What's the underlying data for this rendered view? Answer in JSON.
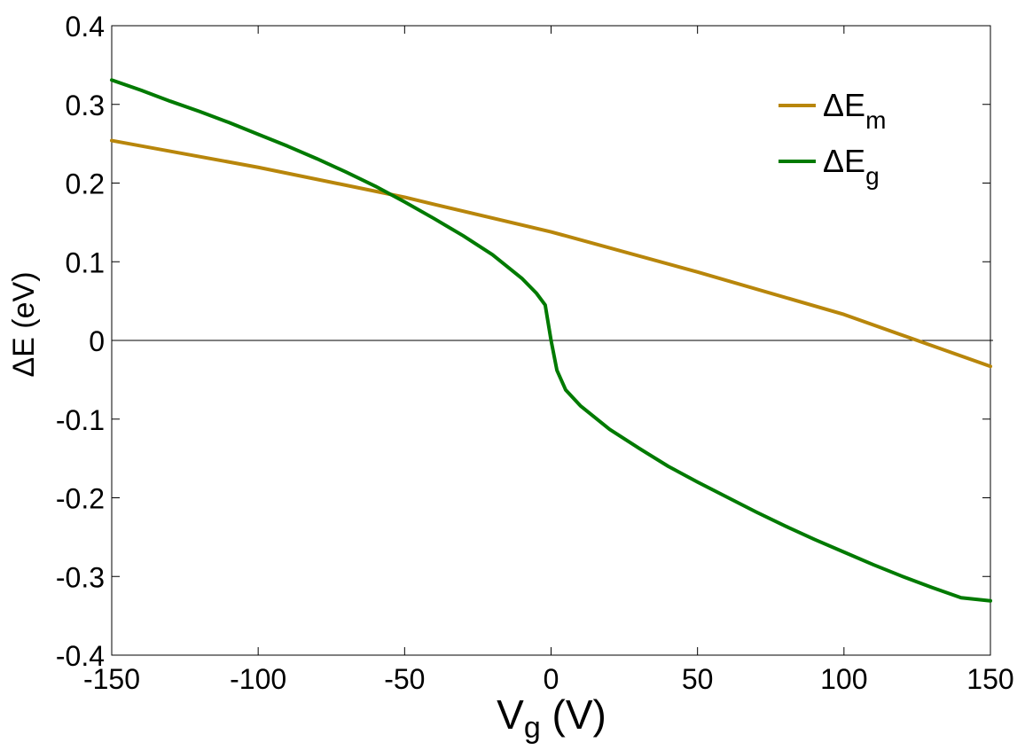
{
  "chart_data": {
    "type": "line",
    "title": "",
    "xlabel": {
      "main": "V",
      "sub": "g",
      "rest": " (V)"
    },
    "ylabel": "ΔE (eV)",
    "xlim": [
      -150,
      150
    ],
    "ylim": [
      -0.4,
      0.4
    ],
    "xticks": [
      -150,
      -100,
      -50,
      0,
      50,
      100,
      150
    ],
    "xtick_labels": [
      "-150",
      "-100",
      "-50",
      "0",
      "50",
      "100",
      "150"
    ],
    "yticks": [
      -0.4,
      -0.3,
      -0.2,
      -0.1,
      0,
      0.1,
      0.2,
      0.3,
      0.4
    ],
    "ytick_labels": [
      "-0.4",
      "-0.3",
      "-0.2",
      "-0.1",
      "0",
      "0.1",
      "0.2",
      "0.3",
      "0.4"
    ],
    "grid": false,
    "zero_line": true,
    "legend_position": "top-right",
    "series": [
      {
        "name": {
          "main": "ΔE",
          "sub": "m"
        },
        "color": "#b8860b",
        "x": [
          -150,
          -100,
          -50,
          -40,
          0,
          50,
          100,
          125,
          150
        ],
        "y": [
          0.254,
          0.22,
          0.182,
          0.173,
          0.138,
          0.087,
          0.033,
          0.0,
          -0.033
        ]
      },
      {
        "name": {
          "main": "ΔE",
          "sub": "g"
        },
        "color": "#007a00",
        "x": [
          -150,
          -140,
          -130,
          -120,
          -110,
          -100,
          -90,
          -80,
          -70,
          -60,
          -50,
          -40,
          -30,
          -20,
          -10,
          -5,
          -2,
          0,
          2,
          5,
          10,
          20,
          30,
          40,
          50,
          60,
          70,
          80,
          90,
          100,
          110,
          120,
          130,
          140,
          150
        ],
        "y": [
          0.331,
          0.318,
          0.304,
          0.291,
          0.277,
          0.262,
          0.247,
          0.231,
          0.214,
          0.196,
          0.176,
          0.155,
          0.133,
          0.109,
          0.079,
          0.06,
          0.045,
          0.0,
          -0.038,
          -0.063,
          -0.083,
          -0.113,
          -0.137,
          -0.16,
          -0.18,
          -0.199,
          -0.218,
          -0.236,
          -0.253,
          -0.269,
          -0.285,
          -0.3,
          -0.314,
          -0.327,
          -0.331
        ]
      }
    ]
  }
}
